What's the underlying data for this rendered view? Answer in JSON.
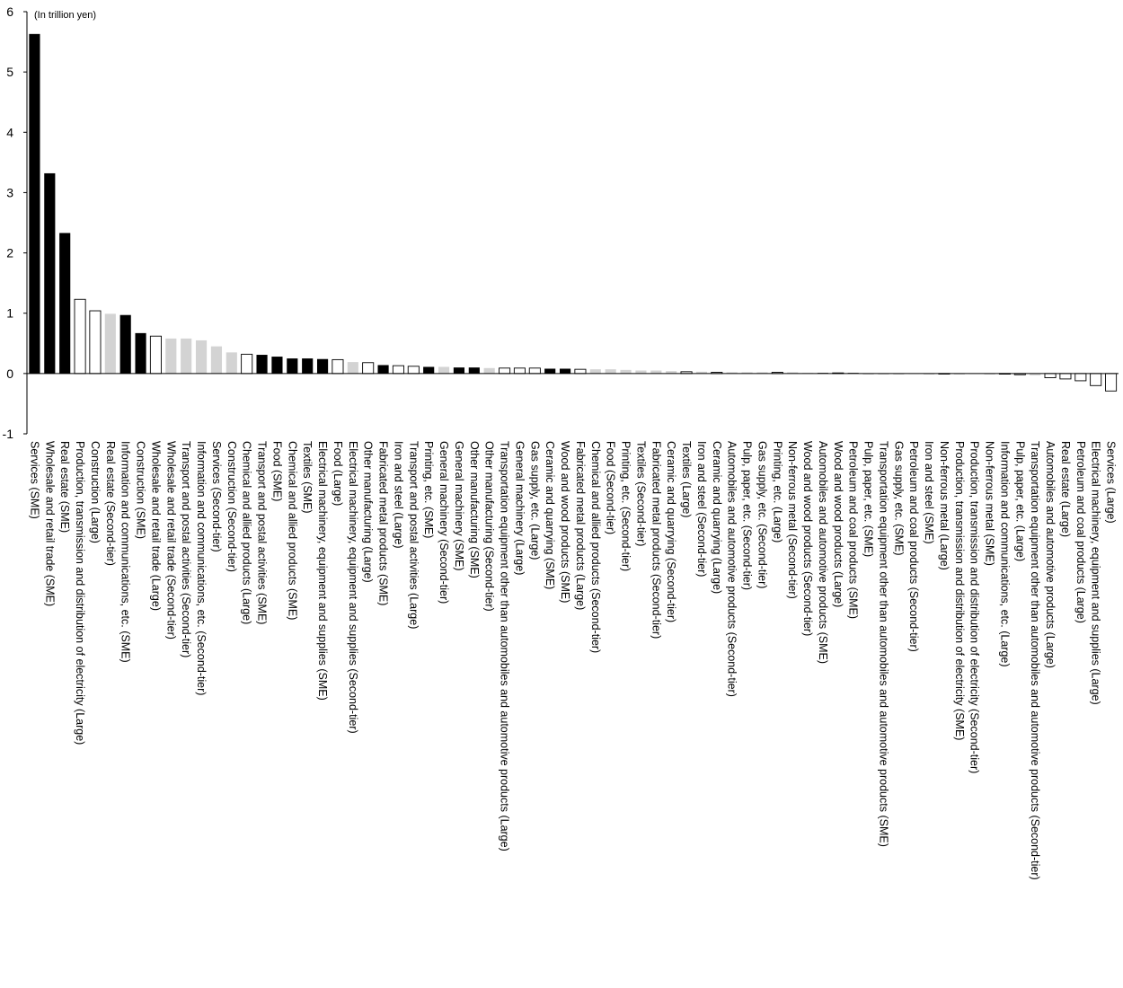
{
  "chart_data": {
    "type": "bar",
    "unit_label": "(In trillion yen)",
    "ylim": [
      -1,
      6
    ],
    "yticks": [
      "6",
      "5",
      "4",
      "3",
      "2",
      "1",
      "0",
      "-1"
    ],
    "grid": false,
    "legend": "none",
    "colors": {
      "SME": "#000000",
      "Large": "#ffffff",
      "Second-tier": "#d3d3d3",
      "outline": "#000000"
    },
    "categories": [
      "Services (SME)",
      "Wholesale and retail trade (SME)",
      "Real estate (SME)",
      "Production, transmission and distribution of electricity (Large)",
      "Construction (Large)",
      "Real estate (Second-tier)",
      "Information and communications, etc. (SME)",
      "Construction (SME)",
      "Wholesale and retail trade (Large)",
      "Wholesale and retail trade (Second-tier)",
      "Transport and postal activities (Second-tier)",
      "Information and communications, etc. (Second-tier)",
      "Services (Second-tier)",
      "Construction (Second-tier)",
      "Chemical and allied products (Large)",
      "Transport and postal activities (SME)",
      "Food (SME)",
      "Chemical and allied products (SME)",
      "Textiles (SME)",
      "Electrical machinery, equipment and supplies (SME)",
      "Food (Large)",
      "Electrical machinery, equipment and supplies (Second-tier)",
      "Other manufacturing (Large)",
      "Fabricated metal products (SME)",
      "Iron and steel (Large)",
      "Transport and postal activities (Large)",
      "Printing, etc. (SME)",
      "General machinery (Second-tier)",
      "General machinery (SME)",
      "Other manufacturing (SME)",
      "Other manufacturing (Second-tier)",
      "Transportation equipment other than automobiles and automotive products (Large)",
      "General machinery (Large)",
      "Gas supply, etc. (Large)",
      "Ceramic and quarrying (SME)",
      "Wood and wood products (SME)",
      "Fabricated metal products (Large)",
      "Chemical and allied products (Second-tier)",
      "Food (Second-tier)",
      "Printing, etc. (Second-tier)",
      "Textiles (Second-tier)",
      "Fabricated metal products (Second-tier)",
      "Ceramic and quarrying (Second-tier)",
      "Textiles (Large)",
      "Iron and steel (Second-tier)",
      "Ceramic and quarrying (Large)",
      "Automobiles and automotive products (Second-tier)",
      "Pulp, paper, etc. (Second-tier)",
      "Gas supply, etc. (Second-tier)",
      "Printing, etc. (Large)",
      "Non-ferrous metal (Second-tier)",
      "Wood and wood products (Second-tier)",
      "Automobiles and automotive products (SME)",
      "Wood and wood products (Large)",
      "Petroleum and coal products (SME)",
      "Pulp, paper, etc. (SME)",
      "Transportation equipment other than automobiles and automotive products (SME)",
      "Gas supply, etc. (SME)",
      "Petroleum and coal products (Second-tier)",
      "Iron and steel (SME)",
      "Non-ferrous metal (Large)",
      "Production, transmission and distribution of electricity (SME)",
      "Production, transmission and distribution of electricity (Second-tier)",
      "Non-ferrous metal (SME)",
      "Information and communications, etc. (Large)",
      "Pulp, paper, etc. (Large)",
      "Transportation equipment other than automobiles and automotive products (Second-tier)",
      "Automobiles and automotive products (Large)",
      "Real estate (Large)",
      "Petroleum and coal products (Large)",
      "Electrical machinery, equipment and supplies (Large)",
      "Services (Large)"
    ],
    "values": [
      5.63,
      3.32,
      2.33,
      1.23,
      1.04,
      0.99,
      0.97,
      0.67,
      0.62,
      0.58,
      0.58,
      0.55,
      0.45,
      0.35,
      0.32,
      0.31,
      0.28,
      0.25,
      0.25,
      0.24,
      0.23,
      0.19,
      0.18,
      0.14,
      0.13,
      0.12,
      0.11,
      0.11,
      0.1,
      0.1,
      0.09,
      0.09,
      0.09,
      0.09,
      0.08,
      0.08,
      0.07,
      0.07,
      0.07,
      0.06,
      0.05,
      0.05,
      0.04,
      0.03,
      0.03,
      0.02,
      0.02,
      0.02,
      0.02,
      0.02,
      0.02,
      0.01,
      0.01,
      0.01,
      0.01,
      0.0,
      0.0,
      0.0,
      0.0,
      0.0,
      0.0,
      0.0,
      0.0,
      0.0,
      -0.01,
      -0.02,
      -0.03,
      -0.07,
      -0.09,
      -0.12,
      -0.2,
      -0.29
    ]
  }
}
